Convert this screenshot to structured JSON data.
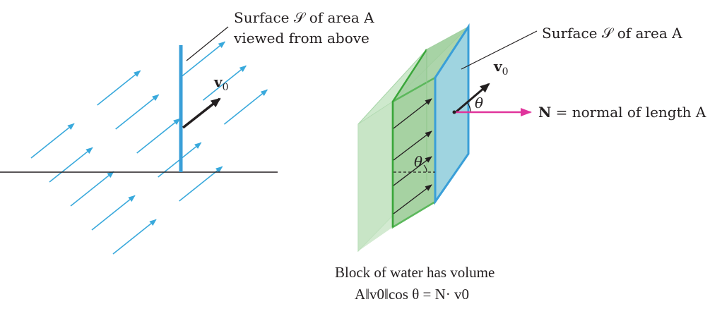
{
  "left_panel": {
    "surface_label_line1": "Surface 𝒮 of area A",
    "surface_label_line2": "viewed from above",
    "velocity_label": "v",
    "velocity_subscript": "0"
  },
  "right_panel": {
    "surface_label": "Surface 𝒮 of area A",
    "velocity_label": "v",
    "velocity_subscript": "0",
    "angle_label_top": "θ",
    "angle_label_bottom": "θ",
    "normal_label_bold": "N",
    "normal_label_rest": " = normal of length A",
    "caption_line1": "Block of water has volume",
    "caption_line2": "A‖v0‖cos θ = N· v0"
  },
  "colors": {
    "flow_arrow": "#39a9dc",
    "surface_edge": "#3a9fd8",
    "block_green": "#5cb85c",
    "surface_fill": "#9fd4e0",
    "normal_arrow": "#e0349c",
    "ink": "#231f20"
  },
  "icons": {
    "flow_arrows": "arrow-right-up-icon",
    "velocity_vector": "arrow-right-up-icon",
    "normal_vector": "arrow-right-icon"
  }
}
